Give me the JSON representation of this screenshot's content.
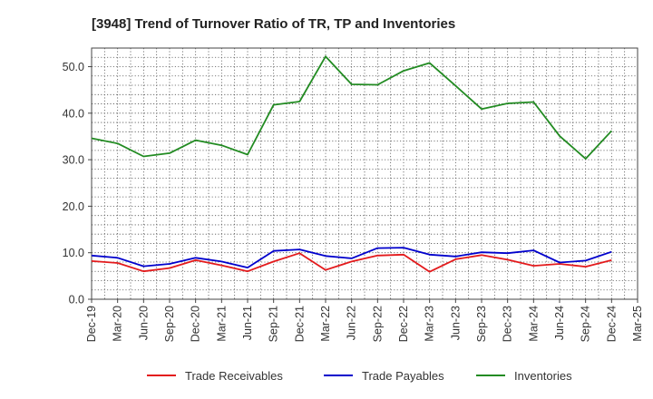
{
  "chart_data": {
    "type": "line",
    "title": "[3948]  Trend of Turnover Ratio of TR, TP and Inventories",
    "xlabel": "",
    "ylabel": "",
    "x": [
      "Dec-19",
      "Mar-20",
      "Jun-20",
      "Sep-20",
      "Dec-20",
      "Mar-21",
      "Jun-21",
      "Sep-21",
      "Dec-21",
      "Mar-22",
      "Jun-22",
      "Sep-22",
      "Dec-22",
      "Mar-23",
      "Jun-23",
      "Sep-23",
      "Dec-23",
      "Mar-24",
      "Jun-24",
      "Sep-24",
      "Dec-24",
      "Mar-25"
    ],
    "ylim": [
      0,
      54
    ],
    "yticks": [
      0,
      10,
      20,
      30,
      40,
      50
    ],
    "ytick_labels": [
      "0.0",
      "10.0",
      "20.0",
      "30.0",
      "40.0",
      "50.0"
    ],
    "grid": true,
    "legend_position": "bottom",
    "series": [
      {
        "name": "Trade Receivables",
        "color": "#e31a1c",
        "values": [
          8.2,
          7.8,
          6.0,
          6.7,
          8.4,
          7.3,
          6.0,
          8.1,
          9.9,
          6.3,
          8.1,
          9.4,
          9.6,
          5.9,
          8.6,
          9.5,
          8.5,
          7.2,
          7.6,
          7.0,
          8.4,
          null
        ]
      },
      {
        "name": "Trade Payables",
        "color": "#0000cc",
        "values": [
          9.4,
          8.9,
          7.1,
          7.6,
          8.9,
          8.1,
          6.8,
          10.4,
          10.7,
          9.3,
          8.8,
          11.0,
          11.1,
          9.6,
          9.2,
          10.1,
          9.9,
          10.5,
          7.9,
          8.3,
          10.2,
          null
        ]
      },
      {
        "name": "Inventories",
        "color": "#228b22",
        "values": [
          34.6,
          33.5,
          30.7,
          31.4,
          34.2,
          33.1,
          31.1,
          41.8,
          42.5,
          52.2,
          46.2,
          46.1,
          49.1,
          50.8,
          45.9,
          40.9,
          42.1,
          42.4,
          35.1,
          30.2,
          36.2,
          null
        ]
      }
    ]
  }
}
